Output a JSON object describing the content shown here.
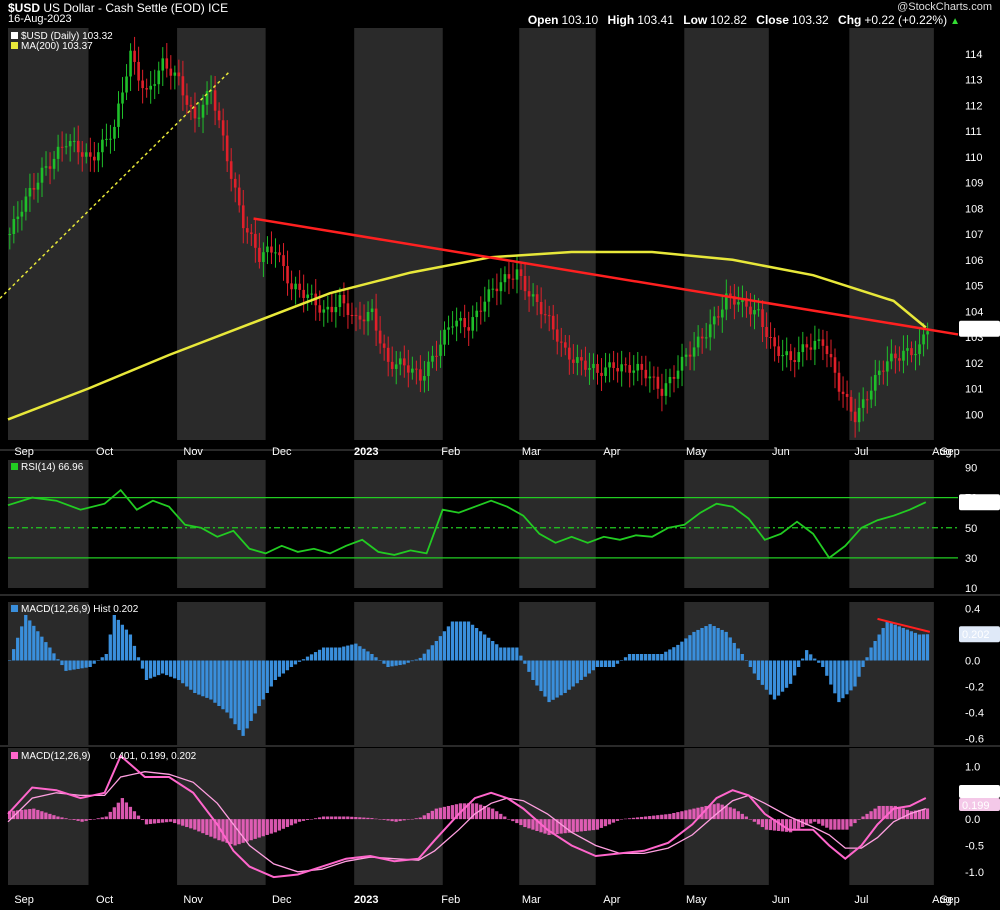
{
  "header": {
    "symbol": "$USD",
    "description": "US Dollar - Cash Settle (EOD)",
    "exchange": "ICE",
    "date": "16-Aug-2023",
    "credit": "@StockCharts.com",
    "open_label": "Open",
    "open": "103.10",
    "high_label": "High",
    "high": "103.41",
    "low_label": "Low",
    "low": "102.82",
    "close_label": "Close",
    "close": "103.32",
    "chg_label": "Chg",
    "chg": "+0.22 (+0.22%)"
  },
  "colors": {
    "up": "#1fbf2a",
    "down": "#e0202a",
    "ma": "#e8e83a",
    "trendline": "#ff2020",
    "rsi": "#22cc22",
    "macd_hist": "#3a8fdc",
    "macd_pink": "#ff66cc",
    "band_dark": "#2a2a2a"
  },
  "chart_data": [
    {
      "type": "candlestick",
      "legend": [
        "$USD (Daily) 103.32",
        "MA(200) 103.37"
      ],
      "last_label": "103.32",
      "ylim": [
        99,
        115
      ],
      "yticks": [
        100,
        101,
        102,
        103,
        104,
        105,
        106,
        107,
        108,
        109,
        110,
        111,
        112,
        113,
        114
      ],
      "month_labels": [
        "Sep",
        "Oct",
        "Nov",
        "Dec",
        "2023",
        "Feb",
        "Mar",
        "Apr",
        "May",
        "Jun",
        "Jul",
        "Aug",
        "Sep"
      ],
      "close_path": [
        [
          0,
          107.0
        ],
        [
          8,
          109.5
        ],
        [
          14,
          110.5
        ],
        [
          20,
          110.0
        ],
        [
          26,
          111.0
        ],
        [
          30,
          114.0
        ],
        [
          34,
          112.5
        ],
        [
          38,
          113.5
        ],
        [
          42,
          113.0
        ],
        [
          46,
          111.5
        ],
        [
          50,
          112.5
        ],
        [
          54,
          110.0
        ],
        [
          58,
          107.5
        ],
        [
          62,
          106.0
        ],
        [
          66,
          106.5
        ],
        [
          70,
          105.0
        ],
        [
          74,
          104.5
        ],
        [
          78,
          104.0
        ],
        [
          82,
          104.5
        ],
        [
          86,
          103.5
        ],
        [
          90,
          104.0
        ],
        [
          94,
          102.0
        ],
        [
          98,
          101.8
        ],
        [
          102,
          101.5
        ],
        [
          106,
          102.5
        ],
        [
          110,
          103.5
        ],
        [
          114,
          103.5
        ],
        [
          118,
          104.5
        ],
        [
          122,
          105.0
        ],
        [
          126,
          105.6
        ],
        [
          130,
          104.5
        ],
        [
          134,
          103.5
        ],
        [
          138,
          102.5
        ],
        [
          142,
          102.0
        ],
        [
          146,
          101.5
        ],
        [
          150,
          102.0
        ],
        [
          154,
          101.8
        ],
        [
          158,
          101.5
        ],
        [
          162,
          101.0
        ],
        [
          166,
          101.8
        ],
        [
          170,
          102.5
        ],
        [
          174,
          103.5
        ],
        [
          178,
          104.5
        ],
        [
          182,
          104.2
        ],
        [
          186,
          104.0
        ],
        [
          190,
          102.5
        ],
        [
          194,
          102.0
        ],
        [
          198,
          102.8
        ],
        [
          202,
          102.8
        ],
        [
          206,
          101.0
        ],
        [
          210,
          100.0
        ],
        [
          214,
          101.0
        ],
        [
          218,
          102.0
        ],
        [
          222,
          102.5
        ],
        [
          226,
          102.5
        ],
        [
          228,
          103.3
        ]
      ],
      "ma200_path": [
        [
          0,
          99.8
        ],
        [
          20,
          101.0
        ],
        [
          40,
          102.3
        ],
        [
          60,
          103.5
        ],
        [
          80,
          104.7
        ],
        [
          100,
          105.5
        ],
        [
          120,
          106.1
        ],
        [
          140,
          106.3
        ],
        [
          160,
          106.3
        ],
        [
          180,
          106.0
        ],
        [
          200,
          105.4
        ],
        [
          220,
          104.4
        ],
        [
          228,
          103.37
        ]
      ],
      "trendline": [
        [
          61,
          107.6
        ],
        [
          236,
          103.1
        ]
      ],
      "pre_trendline": [
        [
          -2,
          104.5
        ],
        [
          55,
          113.3
        ]
      ]
    },
    {
      "type": "line",
      "name": "RSI",
      "legend": "RSI(14) 66.96",
      "last_label": "66.96",
      "ylim": [
        10,
        95
      ],
      "yticks": [
        10,
        30,
        50,
        70,
        90
      ],
      "reference_lines": [
        30,
        50,
        70
      ],
      "values": [
        [
          0,
          65
        ],
        [
          6,
          70
        ],
        [
          12,
          68
        ],
        [
          18,
          62
        ],
        [
          24,
          66
        ],
        [
          28,
          75
        ],
        [
          32,
          62
        ],
        [
          36,
          68
        ],
        [
          40,
          64
        ],
        [
          44,
          52
        ],
        [
          48,
          50
        ],
        [
          52,
          44
        ],
        [
          56,
          48
        ],
        [
          60,
          36
        ],
        [
          64,
          33
        ],
        [
          68,
          38
        ],
        [
          72,
          34
        ],
        [
          76,
          36
        ],
        [
          80,
          33
        ],
        [
          84,
          38
        ],
        [
          88,
          42
        ],
        [
          92,
          34
        ],
        [
          96,
          32
        ],
        [
          100,
          35
        ],
        [
          104,
          33
        ],
        [
          108,
          62
        ],
        [
          112,
          60
        ],
        [
          116,
          64
        ],
        [
          120,
          68
        ],
        [
          124,
          64
        ],
        [
          128,
          58
        ],
        [
          132,
          46
        ],
        [
          136,
          40
        ],
        [
          140,
          44
        ],
        [
          144,
          40
        ],
        [
          148,
          44
        ],
        [
          152,
          42
        ],
        [
          156,
          45
        ],
        [
          160,
          44
        ],
        [
          164,
          50
        ],
        [
          168,
          52
        ],
        [
          172,
          60
        ],
        [
          176,
          66
        ],
        [
          180,
          64
        ],
        [
          184,
          56
        ],
        [
          188,
          42
        ],
        [
          192,
          46
        ],
        [
          196,
          54
        ],
        [
          200,
          46
        ],
        [
          204,
          30
        ],
        [
          208,
          38
        ],
        [
          212,
          50
        ],
        [
          216,
          55
        ],
        [
          220,
          58
        ],
        [
          224,
          62
        ],
        [
          228,
          67
        ]
      ]
    },
    {
      "type": "bar",
      "name": "MACD Hist",
      "legend": "MACD(12,26,9) Hist 0.202",
      "last_label": "0.202",
      "ylim": [
        -0.65,
        0.45
      ],
      "yticks": [
        0.4,
        0.2,
        0.0,
        -0.2,
        -0.4,
        -0.6
      ],
      "values": [
        [
          0,
          0.0
        ],
        [
          4,
          0.35
        ],
        [
          10,
          0.1
        ],
        [
          14,
          -0.08
        ],
        [
          20,
          -0.05
        ],
        [
          24,
          0.05
        ],
        [
          26,
          0.35
        ],
        [
          30,
          0.2
        ],
        [
          34,
          -0.15
        ],
        [
          38,
          -0.1
        ],
        [
          42,
          -0.15
        ],
        [
          46,
          -0.25
        ],
        [
          50,
          -0.3
        ],
        [
          54,
          -0.4
        ],
        [
          58,
          -0.58
        ],
        [
          62,
          -0.35
        ],
        [
          66,
          -0.15
        ],
        [
          70,
          -0.05
        ],
        [
          74,
          0.03
        ],
        [
          78,
          0.1
        ],
        [
          82,
          0.1
        ],
        [
          86,
          0.13
        ],
        [
          90,
          0.05
        ],
        [
          94,
          -0.05
        ],
        [
          98,
          -0.03
        ],
        [
          102,
          0.02
        ],
        [
          106,
          0.15
        ],
        [
          110,
          0.3
        ],
        [
          114,
          0.3
        ],
        [
          118,
          0.2
        ],
        [
          122,
          0.1
        ],
        [
          126,
          0.1
        ],
        [
          130,
          -0.15
        ],
        [
          134,
          -0.32
        ],
        [
          138,
          -0.25
        ],
        [
          142,
          -0.15
        ],
        [
          146,
          -0.05
        ],
        [
          150,
          -0.05
        ],
        [
          154,
          0.05
        ],
        [
          158,
          0.05
        ],
        [
          162,
          0.05
        ],
        [
          166,
          0.12
        ],
        [
          170,
          0.22
        ],
        [
          174,
          0.28
        ],
        [
          178,
          0.22
        ],
        [
          182,
          0.05
        ],
        [
          186,
          -0.15
        ],
        [
          190,
          -0.3
        ],
        [
          194,
          -0.18
        ],
        [
          198,
          0.08
        ],
        [
          202,
          -0.05
        ],
        [
          206,
          -0.32
        ],
        [
          210,
          -0.2
        ],
        [
          214,
          0.1
        ],
        [
          218,
          0.3
        ],
        [
          222,
          0.25
        ],
        [
          226,
          0.2
        ],
        [
          228,
          0.202
        ]
      ],
      "divergence_line": [
        [
          216,
          0.32
        ],
        [
          229,
          0.22
        ]
      ]
    },
    {
      "type": "line",
      "name": "MACD",
      "legend_prefix": "MACD(12,26,9)",
      "legend_values": "0.401, 0.199, 0.202",
      "last_labels": [
        "0.401",
        "0.199"
      ],
      "ylim": [
        -1.25,
        1.35
      ],
      "yticks": [
        1.0,
        0.5,
        0.0,
        -0.5,
        -1.0
      ],
      "series": [
        {
          "values": [
            [
              0,
              0.1
            ],
            [
              6,
              0.6
            ],
            [
              12,
              0.55
            ],
            [
              18,
              0.4
            ],
            [
              24,
              0.5
            ],
            [
              28,
              1.2
            ],
            [
              34,
              0.8
            ],
            [
              40,
              0.8
            ],
            [
              46,
              0.5
            ],
            [
              52,
              -0.1
            ],
            [
              56,
              -0.6
            ],
            [
              60,
              -0.9
            ],
            [
              66,
              -1.1
            ],
            [
              72,
              -1.05
            ],
            [
              78,
              -0.9
            ],
            [
              84,
              -0.75
            ],
            [
              90,
              -0.7
            ],
            [
              96,
              -0.8
            ],
            [
              102,
              -0.75
            ],
            [
              106,
              -0.4
            ],
            [
              112,
              0.1
            ],
            [
              116,
              0.4
            ],
            [
              120,
              0.5
            ],
            [
              124,
              0.4
            ],
            [
              128,
              0.2
            ],
            [
              134,
              -0.2
            ],
            [
              140,
              -0.5
            ],
            [
              146,
              -0.7
            ],
            [
              152,
              -0.65
            ],
            [
              158,
              -0.6
            ],
            [
              164,
              -0.45
            ],
            [
              170,
              -0.1
            ],
            [
              176,
              0.4
            ],
            [
              180,
              0.55
            ],
            [
              184,
              0.45
            ],
            [
              188,
              0.1
            ],
            [
              194,
              -0.2
            ],
            [
              200,
              -0.2
            ],
            [
              204,
              -0.5
            ],
            [
              208,
              -0.75
            ],
            [
              212,
              -0.5
            ],
            [
              216,
              -0.1
            ],
            [
              220,
              0.2
            ],
            [
              224,
              0.25
            ],
            [
              228,
              0.401
            ]
          ]
        },
        {
          "values": [
            [
              0,
              -0.05
            ],
            [
              6,
              0.4
            ],
            [
              12,
              0.5
            ],
            [
              18,
              0.45
            ],
            [
              24,
              0.45
            ],
            [
              28,
              0.8
            ],
            [
              34,
              0.9
            ],
            [
              40,
              0.85
            ],
            [
              46,
              0.7
            ],
            [
              52,
              0.3
            ],
            [
              56,
              -0.1
            ],
            [
              60,
              -0.5
            ],
            [
              66,
              -0.85
            ],
            [
              72,
              -1.0
            ],
            [
              78,
              -0.95
            ],
            [
              84,
              -0.8
            ],
            [
              90,
              -0.72
            ],
            [
              96,
              -0.75
            ],
            [
              102,
              -0.78
            ],
            [
              106,
              -0.6
            ],
            [
              112,
              -0.2
            ],
            [
              116,
              0.1
            ],
            [
              120,
              0.3
            ],
            [
              124,
              0.4
            ],
            [
              128,
              0.35
            ],
            [
              134,
              0.1
            ],
            [
              140,
              -0.25
            ],
            [
              146,
              -0.5
            ],
            [
              152,
              -0.65
            ],
            [
              158,
              -0.65
            ],
            [
              164,
              -0.55
            ],
            [
              170,
              -0.3
            ],
            [
              176,
              0.1
            ],
            [
              180,
              0.35
            ],
            [
              184,
              0.45
            ],
            [
              188,
              0.3
            ],
            [
              194,
              0.05
            ],
            [
              200,
              -0.15
            ],
            [
              204,
              -0.3
            ],
            [
              208,
              -0.55
            ],
            [
              212,
              -0.55
            ],
            [
              216,
              -0.35
            ],
            [
              220,
              -0.05
            ],
            [
              224,
              0.1
            ],
            [
              228,
              0.199
            ]
          ]
        }
      ]
    }
  ]
}
